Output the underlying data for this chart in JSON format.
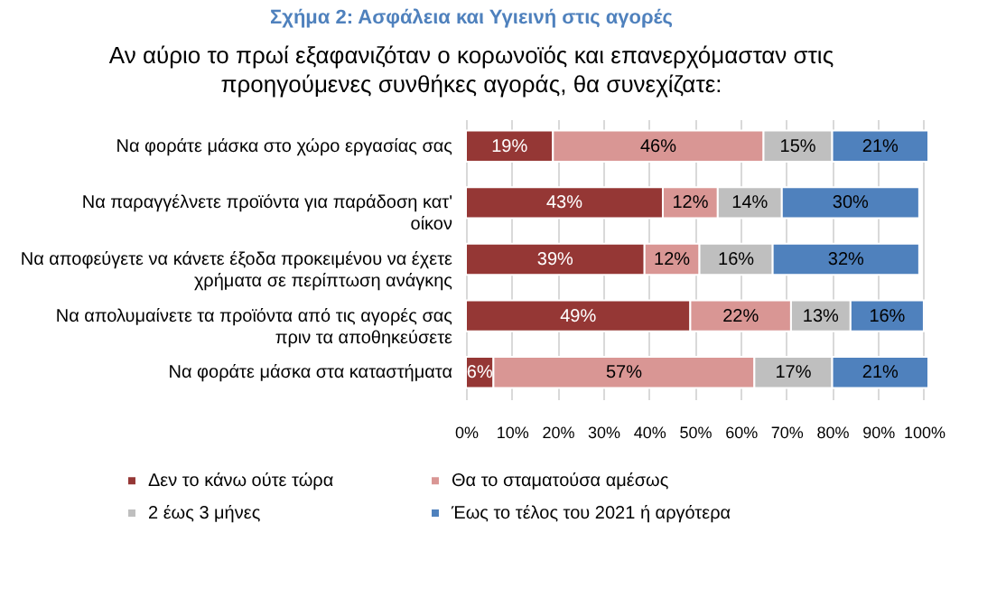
{
  "chart_data": {
    "type": "bar",
    "orientation": "horizontal",
    "stacked": true,
    "title": "Σχήμα 2: Ασφάλεια και Υγιεινή στις αγορές",
    "subtitle": "Αν αύριο το πρωί εξαφανιζόταν ο κορωνοϊός και επανερχόμασταν στις προηγούμενες συνθήκες αγοράς, θα συνεχίζατε:",
    "categories": [
      "Να φοράτε μάσκα  στο χώρο εργασίας  σας",
      "Να παραγγέλνετε  προϊόντα  για παράδοση  κατ' οίκον",
      "Να αποφεύγετε να κάνετε έξοδα προκειμένου να έχετε χρήματα  σε περίπτωση  ανάγκης",
      "Να απολυμαίνετε τα προϊόντα  από τις αγορές σας πριν τα αποθηκεύσετε",
      "Να φοράτε μάσκα  στα καταστήματα"
    ],
    "series": [
      {
        "name": "Δεν το κάνω ούτε τώρα",
        "color": "#953735",
        "values": [
          19,
          43,
          39,
          49,
          6
        ],
        "value_labels": [
          "19%",
          "43%",
          "39%",
          "49%",
          "6%"
        ]
      },
      {
        "name": "Θα το σταματούσα  αμέσως",
        "color": "#d99694",
        "values": [
          46,
          12,
          12,
          22,
          57
        ],
        "value_labels": [
          "46%",
          "12%",
          "12%",
          "22%",
          "57%"
        ]
      },
      {
        "name": "2 έως 3 μήνες",
        "color": "#bfbfbf",
        "values": [
          15,
          14,
          16,
          13,
          17
        ],
        "value_labels": [
          "15%",
          "14%",
          "16%",
          "13%",
          "17%"
        ]
      },
      {
        "name": "Έως το τέλος του 2021 ή αργότερα",
        "color": "#4f81bd",
        "values": [
          21,
          30,
          32,
          16,
          21
        ],
        "value_labels": [
          "21%",
          "30%",
          "32%",
          "16%",
          "21%"
        ]
      }
    ],
    "xlim": [
      0,
      101
    ],
    "xticks": [
      {
        "value": 0,
        "label": "0%"
      },
      {
        "value": 10,
        "label": "10%"
      },
      {
        "value": 20,
        "label": "20%"
      },
      {
        "value": 30,
        "label": "30%"
      },
      {
        "value": 40,
        "label": "40%"
      },
      {
        "value": 50,
        "label": "50%"
      },
      {
        "value": 60,
        "label": "60%"
      },
      {
        "value": 70,
        "label": "70%"
      },
      {
        "value": 80,
        "label": "80%"
      },
      {
        "value": 90,
        "label": "90%"
      },
      {
        "value": 100,
        "label": "100%"
      }
    ],
    "grid": "x",
    "legend": "bottom"
  }
}
